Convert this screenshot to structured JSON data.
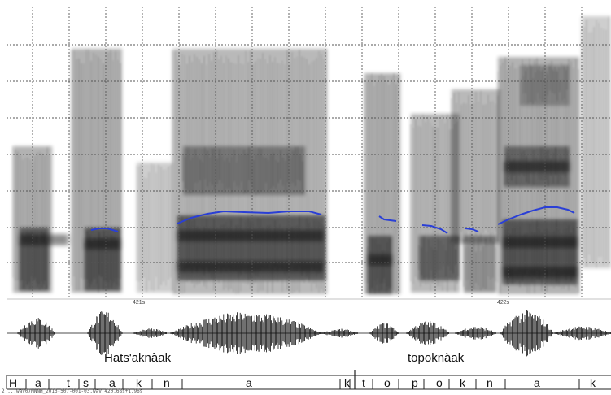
{
  "time_markers": [
    "421s",
    "422s"
  ],
  "words": [
    "Hats'aknàak",
    "topoknàak"
  ],
  "segments": [
    "H",
    "a",
    "t",
    "s",
    "a",
    "k",
    "n",
    "a",
    "k",
    "t",
    "o",
    "p",
    "o",
    "k",
    "n",
    "a",
    "k"
  ],
  "footer_text": "2 ...wav07MNNH_2013-507-001-03.wav 420.68s+1.96s",
  "colors": {
    "pitch": "#2a3fd6",
    "grid": "#555555",
    "waveform": "#111111"
  }
}
